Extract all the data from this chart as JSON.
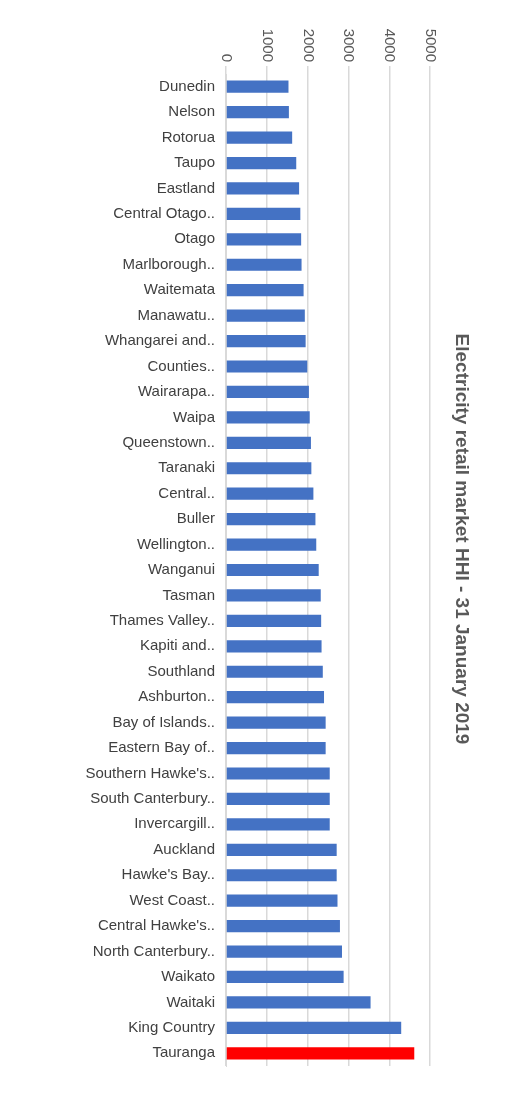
{
  "chart_data": {
    "type": "bar",
    "orientation": "horizontal",
    "title": "Electricity retail market HHI - 31 January 2019",
    "categories": [
      "Dunedin",
      "Nelson",
      "Rotorua",
      "Taupo",
      "Eastland",
      "Central Otago..",
      "Otago",
      "Marlborough..",
      "Waitemata",
      "Manawatu..",
      "Whangarei and..",
      "Counties..",
      "Wairarapa..",
      "Waipa",
      "Queenstown..",
      "Taranaki",
      "Central..",
      "Buller",
      "Wellington..",
      "Wanganui",
      "Tasman",
      "Thames Valley..",
      "Kapiti and..",
      "Southland",
      "Ashburton..",
      "Bay of Islands..",
      "Eastern Bay of..",
      "Southern Hawke's..",
      "South Canterbury..",
      "Invercargill..",
      "Auckland",
      "Hawke's Bay..",
      "West Coast..",
      "Central Hawke's..",
      "North Canterbury..",
      "Waikato",
      "Waitaki",
      "King Country",
      "Tauranga"
    ],
    "values": [
      1530,
      1540,
      1620,
      1720,
      1790,
      1820,
      1840,
      1850,
      1900,
      1930,
      1950,
      1990,
      2030,
      2050,
      2080,
      2090,
      2140,
      2190,
      2210,
      2270,
      2320,
      2330,
      2340,
      2370,
      2400,
      2440,
      2440,
      2540,
      2540,
      2540,
      2710,
      2710,
      2730,
      2790,
      2840,
      2880,
      3540,
      4290,
      4610
    ],
    "colors": [
      "#4472c4",
      "#4472c4",
      "#4472c4",
      "#4472c4",
      "#4472c4",
      "#4472c4",
      "#4472c4",
      "#4472c4",
      "#4472c4",
      "#4472c4",
      "#4472c4",
      "#4472c4",
      "#4472c4",
      "#4472c4",
      "#4472c4",
      "#4472c4",
      "#4472c4",
      "#4472c4",
      "#4472c4",
      "#4472c4",
      "#4472c4",
      "#4472c4",
      "#4472c4",
      "#4472c4",
      "#4472c4",
      "#4472c4",
      "#4472c4",
      "#4472c4",
      "#4472c4",
      "#4472c4",
      "#4472c4",
      "#4472c4",
      "#4472c4",
      "#4472c4",
      "#4472c4",
      "#4472c4",
      "#4472c4",
      "#4472c4",
      "#ff0000"
    ],
    "xlim": [
      0,
      5000
    ],
    "xticks": [
      0,
      1000,
      2000,
      3000,
      4000,
      5000
    ],
    "grid": "x"
  }
}
